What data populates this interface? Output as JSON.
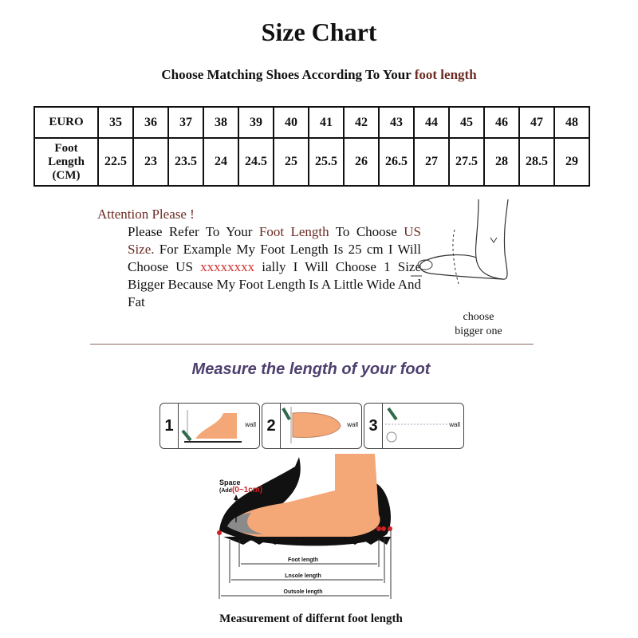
{
  "title": "Size Chart",
  "subtitle": {
    "prefix": "Choose Matching Shoes According To Your ",
    "highlight": "foot length"
  },
  "size_table": {
    "row_headers": [
      "EURO",
      "Foot Length (CM)"
    ],
    "euro": [
      "35",
      "36",
      "37",
      "38",
      "39",
      "40",
      "41",
      "42",
      "43",
      "44",
      "45",
      "46",
      "47",
      "48"
    ],
    "foot_length_cm": [
      "22.5",
      "23",
      "23.5",
      "24",
      "24.5",
      "25",
      "25.5",
      "26",
      "26.5",
      "27",
      "27.5",
      "28",
      "28.5",
      "29"
    ]
  },
  "note": {
    "heading": "Attention Please !",
    "p1": "Please Refer To Your ",
    "p1_hl": "Foot Length",
    "p2": " To Choose ",
    "p2_hl": "US Size.",
    "p3": " For Example My Foot Length Is 25 cm I Will Choose US ",
    "p3_red": "xxxxxxxx",
    "p4": " ially I Will Choose 1 Size Bigger Because My Foot Length Is A Little Wide And Fat"
  },
  "choose_bigger": [
    "choose",
    "bigger one"
  ],
  "measure_heading": "Measure the length of your foot",
  "steps": [
    {
      "num": "1",
      "label": "wall"
    },
    {
      "num": "2",
      "label": "wall"
    },
    {
      "num": "3",
      "label": "wall"
    }
  ],
  "diagram": {
    "space_label": "Space",
    "space_add": "(Add",
    "space_range": "(0~1cm)",
    "foot_length": "Foot length",
    "insole_length": "Lnsole length",
    "outsole_length": "Outsole length"
  },
  "caption": "Measurement of differnt foot length",
  "colors": {
    "accent": "#6b2a22",
    "red": "#d03030",
    "heading_purple": "#4d3f6e",
    "skin": "#f4a878"
  }
}
